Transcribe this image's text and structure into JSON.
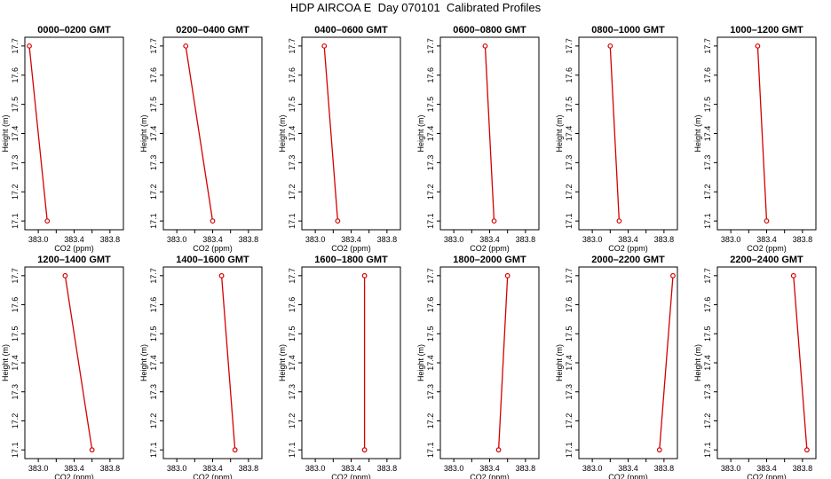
{
  "title": "HDP AIRCOA E  Day 070101  Calibrated Profiles",
  "chart_data": {
    "type": "line",
    "xlabel": "CO2 (ppm)",
    "ylabel": "Height (m)",
    "x_ticks": [
      "383.0",
      "383.4",
      "383.8"
    ],
    "y_ticks": [
      "17.1",
      "17.2",
      "17.3",
      "17.4",
      "17.5",
      "17.6",
      "17.7"
    ],
    "xlim": [
      382.85,
      383.95
    ],
    "ylim": [
      17.07,
      17.73
    ],
    "series_color": "#d40000",
    "panels": [
      {
        "title": "0000–0200 GMT",
        "points": [
          {
            "x": 382.9,
            "y": 17.7
          },
          {
            "x": 383.1,
            "y": 17.1
          }
        ]
      },
      {
        "title": "0200–0400 GMT",
        "points": [
          {
            "x": 383.1,
            "y": 17.7
          },
          {
            "x": 383.4,
            "y": 17.1
          }
        ]
      },
      {
        "title": "0400–0600 GMT",
        "points": [
          {
            "x": 383.1,
            "y": 17.7
          },
          {
            "x": 383.25,
            "y": 17.1
          }
        ]
      },
      {
        "title": "0600–0800 GMT",
        "points": [
          {
            "x": 383.35,
            "y": 17.7
          },
          {
            "x": 383.45,
            "y": 17.1
          }
        ]
      },
      {
        "title": "0800–1000 GMT",
        "points": [
          {
            "x": 383.2,
            "y": 17.7
          },
          {
            "x": 383.3,
            "y": 17.1
          }
        ]
      },
      {
        "title": "1000–1200 GMT",
        "points": [
          {
            "x": 383.3,
            "y": 17.7
          },
          {
            "x": 383.4,
            "y": 17.1
          }
        ]
      },
      {
        "title": "1200–1400 GMT",
        "points": [
          {
            "x": 383.3,
            "y": 17.7
          },
          {
            "x": 383.6,
            "y": 17.1
          }
        ]
      },
      {
        "title": "1400–1600 GMT",
        "points": [
          {
            "x": 383.5,
            "y": 17.7
          },
          {
            "x": 383.65,
            "y": 17.1
          }
        ]
      },
      {
        "title": "1600–1800 GMT",
        "points": [
          {
            "x": 383.55,
            "y": 17.7
          },
          {
            "x": 383.55,
            "y": 17.1
          }
        ]
      },
      {
        "title": "1800–2000 GMT",
        "points": [
          {
            "x": 383.6,
            "y": 17.7
          },
          {
            "x": 383.5,
            "y": 17.1
          }
        ]
      },
      {
        "title": "2000–2200 GMT",
        "points": [
          {
            "x": 383.9,
            "y": 17.7
          },
          {
            "x": 383.75,
            "y": 17.1
          }
        ]
      },
      {
        "title": "2200–2400 GMT",
        "points": [
          {
            "x": 383.7,
            "y": 17.7
          },
          {
            "x": 383.85,
            "y": 17.1
          }
        ]
      }
    ]
  }
}
